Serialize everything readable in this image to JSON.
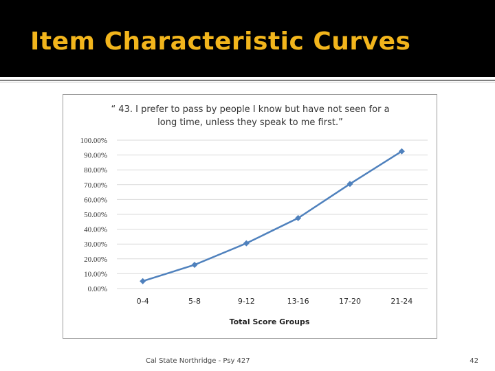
{
  "slide": {
    "title": "Item Characteristic Curves",
    "footer": "Cal State Northridge - Psy 427",
    "page_number": "42"
  },
  "colors": {
    "title_bar": "#000000",
    "title_text": "#f2b51c",
    "series_line": "#4f81bd"
  },
  "chart_data": {
    "type": "line",
    "title": "“ 43. I prefer to pass by people I know but have not seen for a long time, unless they speak to me first.”",
    "title_lines": [
      "“ 43. I prefer to pass by people I know but have not seen for a",
      "long time, unless they speak to me first.”"
    ],
    "xlabel": "Total Score Groups",
    "ylabel": "",
    "categories": [
      "0-4",
      "5-8",
      "9-12",
      "13-16",
      "17-20",
      "21-24"
    ],
    "series": [
      {
        "values": [
          5.0,
          16.0,
          30.5,
          47.5,
          70.5,
          92.5
        ]
      }
    ],
    "y_ticks": [
      "0.00%",
      "10.00%",
      "20.00%",
      "30.00%",
      "40.00%",
      "50.00%",
      "60.00%",
      "70.00%",
      "80.00%",
      "90.00%",
      "100.00%"
    ],
    "ylim": [
      0,
      100
    ],
    "y_unit": "%",
    "grid": true,
    "legend": "none",
    "marker": "diamond"
  }
}
